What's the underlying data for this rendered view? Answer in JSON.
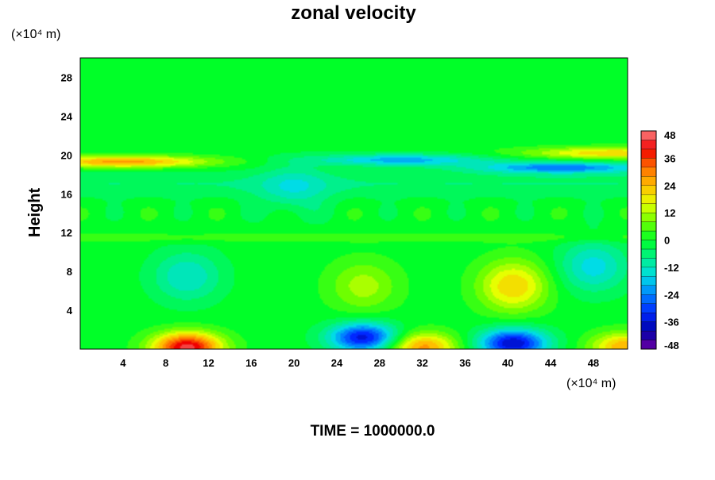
{
  "title": "zonal velocity",
  "footer": "TIME = 1000000.0",
  "colors": {
    "background": "#ffffff",
    "ink": "#000000"
  },
  "chart_data": {
    "type": "heatmap",
    "title": "zonal velocity",
    "xlabel": "",
    "ylabel": "Height",
    "x_unit": "(×10⁴ m)",
    "y_unit": "(×10⁴ m)",
    "xlim": [
      0,
      51.2
    ],
    "ylim": [
      0,
      30
    ],
    "x_ticks": [
      4,
      8,
      12,
      16,
      20,
      24,
      28,
      32,
      36,
      40,
      44,
      48
    ],
    "y_ticks": [
      4,
      8,
      12,
      16,
      20,
      24,
      28
    ],
    "colorbar": {
      "min": -48,
      "max": 48,
      "step": 4,
      "tick_labels": [
        48,
        36,
        24,
        12,
        0,
        -12,
        -24,
        -36,
        -48
      ]
    },
    "features": [
      {
        "x": 10,
        "y": 0.2,
        "value": 44
      },
      {
        "x": 32,
        "y": 0.2,
        "value": 28
      },
      {
        "x": 51,
        "y": 0.2,
        "value": 26
      },
      {
        "x": 26.5,
        "y": 1.2,
        "value": -36
      },
      {
        "x": 40.5,
        "y": 0.6,
        "value": -38
      },
      {
        "x": 40.5,
        "y": 6.5,
        "value": 22
      },
      {
        "x": 26.5,
        "y": 6.5,
        "value": 12
      },
      {
        "x": 4,
        "y": 19.3,
        "value": 28
      },
      {
        "x": 50,
        "y": 20.2,
        "value": 22
      },
      {
        "x": 45,
        "y": 18.7,
        "value": -24
      },
      {
        "x": 30,
        "y": 19.5,
        "value": -20
      },
      {
        "x": 10,
        "y": 7.5,
        "value": -14
      },
      {
        "x": 48,
        "y": 8.5,
        "value": -16
      },
      {
        "x": 20,
        "y": 16.5,
        "value": -10
      }
    ]
  }
}
